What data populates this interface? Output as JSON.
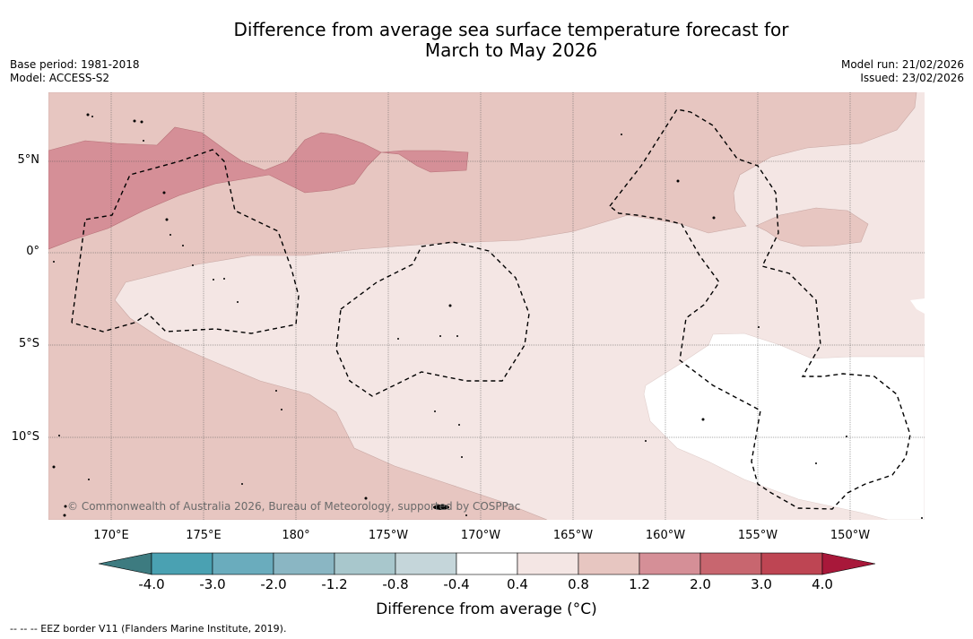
{
  "title_line1": "Difference from average sea surface temperature forecast for",
  "title_line2": "March to May 2026",
  "meta_left": {
    "base_period": "Base period: 1981-2018",
    "model": "Model: ACCESS-S2"
  },
  "meta_right": {
    "model_run": "Model run: 21/02/2026",
    "issued": "Issued: 23/02/2026"
  },
  "map": {
    "copyright": "© Commonwealth of Australia 2026, Bureau of Meteorology, supported by COSPPac",
    "lon_labels": [
      "170°E",
      "175°E",
      "180°",
      "175°W",
      "170°W",
      "165°W",
      "160°W",
      "155°W",
      "150°W"
    ],
    "lat_labels": [
      "5°N",
      "0°",
      "5°S",
      "10°S"
    ],
    "colors": {
      "band_0_4_0_8": "#f4e6e4",
      "band_0_8_1_2": "#e7c6c1",
      "band_1_2_2_0": "#d58f97",
      "band_neg0_4_0_4": "#ffffff",
      "eez_border": "#000000"
    }
  },
  "colorbar": {
    "label": "Difference from average (°C)",
    "ticks": [
      "-4.0",
      "-3.0",
      "-2.0",
      "-1.2",
      "-0.8",
      "-0.4",
      "0.4",
      "0.8",
      "1.2",
      "2.0",
      "3.0",
      "4.0"
    ],
    "colors": [
      "#3d7b80",
      "#4aa1b2",
      "#6aacbd",
      "#8ab6c3",
      "#a8c7cc",
      "#c5d6da",
      "#ffffff",
      "#f4e6e4",
      "#e7c6c1",
      "#d58f97",
      "#c8666f",
      "#be4553",
      "#a8183a"
    ]
  },
  "legend_note": "--  --  -- EEZ border V11 (Flanders Marine Institute, 2019)."
}
